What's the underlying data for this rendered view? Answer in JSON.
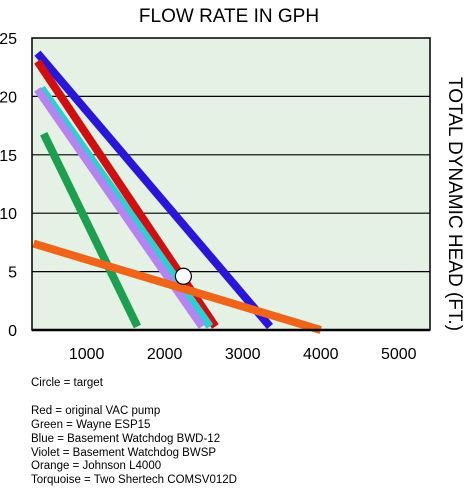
{
  "chart_data": {
    "type": "line",
    "title": "FLOW RATE IN GPH",
    "xlabel": "",
    "ylabel": "TOTAL DYNAMIC HEAD (FT.)",
    "xlim": [
      300,
      5400
    ],
    "ylim": [
      0,
      25
    ],
    "x_ticks": [
      1000,
      2000,
      3000,
      4000,
      5000
    ],
    "y_ticks": [
      0,
      5,
      10,
      15,
      20,
      25
    ],
    "grid": "horizontal",
    "background": "#e4f1e4",
    "series": [
      {
        "color": "#2a16d8",
        "points": [
          [
            370,
            23.7
          ],
          [
            3350,
            0.3
          ]
        ]
      },
      {
        "color": "#d01010",
        "points": [
          [
            370,
            23.0
          ],
          [
            2650,
            0.3
          ]
        ]
      },
      {
        "color": "#26d2d2",
        "points": [
          [
            420,
            20.7
          ],
          [
            2580,
            0.3
          ]
        ]
      },
      {
        "color": "#b484f0",
        "points": [
          [
            370,
            20.6
          ],
          [
            2480,
            0.3
          ]
        ]
      },
      {
        "color": "#1ca050",
        "points": [
          [
            450,
            16.8
          ],
          [
            1650,
            0.3
          ]
        ]
      },
      {
        "color": "#f0641a",
        "points": [
          [
            320,
            7.4
          ],
          [
            4000,
            0.0
          ]
        ]
      }
    ],
    "target": {
      "x": 2240,
      "y": 4.6
    }
  },
  "legend": {
    "circle_note": "Circle = target",
    "entries": [
      "Red = original VAC pump",
      "Green = Wayne ESP15",
      "Blue = Basement Watchdog BWD-12",
      "Violet = Basement Watchdog BWSP",
      "Orange = Johnson L4000",
      "Torquoise = Two Shertech COMSV012D"
    ]
  }
}
